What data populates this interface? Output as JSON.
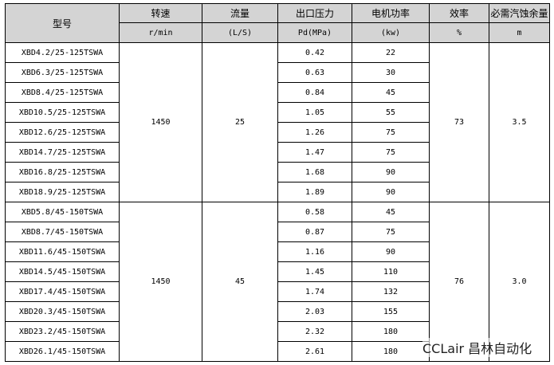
{
  "headers": {
    "model": "型号",
    "speed": "转速",
    "flow": "流量",
    "pressure": "出口压力",
    "power": "电机功率",
    "efficiency": "效率",
    "npsh": "必需汽蚀余量"
  },
  "units": {
    "speed": "r/min",
    "flow": "(L/S)",
    "pressure": "Pd(MPa)",
    "power": "(kw)",
    "efficiency": "%",
    "npsh": "m"
  },
  "groups": [
    {
      "speed": "1450",
      "flow": "25",
      "efficiency": "73",
      "npsh": "3.5",
      "rows": [
        {
          "model": "XBD4.2/25-125TSWA",
          "pressure": "0.42",
          "power": "22"
        },
        {
          "model": "XBD6.3/25-125TSWA",
          "pressure": "0.63",
          "power": "30"
        },
        {
          "model": "XBD8.4/25-125TSWA",
          "pressure": "0.84",
          "power": "45"
        },
        {
          "model": "XBD10.5/25-125TSWA",
          "pressure": "1.05",
          "power": "55"
        },
        {
          "model": "XBD12.6/25-125TSWA",
          "pressure": "1.26",
          "power": "75"
        },
        {
          "model": "XBD14.7/25-125TSWA",
          "pressure": "1.47",
          "power": "75"
        },
        {
          "model": "XBD16.8/25-125TSWA",
          "pressure": "1.68",
          "power": "90"
        },
        {
          "model": "XBD18.9/25-125TSWA",
          "pressure": "1.89",
          "power": "90"
        }
      ]
    },
    {
      "speed": "1450",
      "flow": "45",
      "efficiency": "76",
      "npsh": "3.0",
      "rows": [
        {
          "model": "XBD5.8/45-150TSWA",
          "pressure": "0.58",
          "power": "45"
        },
        {
          "model": "XBD8.7/45-150TSWA",
          "pressure": "0.87",
          "power": "75"
        },
        {
          "model": "XBD11.6/45-150TSWA",
          "pressure": "1.16",
          "power": "90"
        },
        {
          "model": "XBD14.5/45-150TSWA",
          "pressure": "1.45",
          "power": "110"
        },
        {
          "model": "XBD17.4/45-150TSWA",
          "pressure": "1.74",
          "power": "132"
        },
        {
          "model": "XBD20.3/45-150TSWA",
          "pressure": "2.03",
          "power": "155"
        },
        {
          "model": "XBD23.2/45-150TSWA",
          "pressure": "2.32",
          "power": "180"
        },
        {
          "model": "XBD26.1/45-150TSWA",
          "pressure": "2.61",
          "power": "180"
        }
      ]
    }
  ],
  "watermark": "CCLair 昌林自动化"
}
